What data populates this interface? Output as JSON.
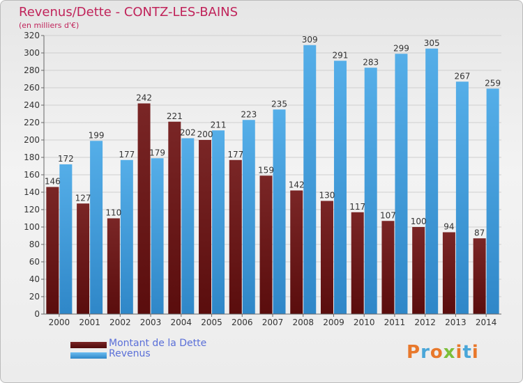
{
  "title": "Revenus/Dette - CONTZ-LES-BAINS",
  "subtitle": "(en milliers d'€)",
  "logo": {
    "text": "Proxiti",
    "colors": [
      "#e8782b",
      "#4aa6d8",
      "#e8782b",
      "#7cbf3a",
      "#e8782b",
      "#4aa6d8",
      "#e8782b"
    ]
  },
  "colors": {
    "dette": "#6e1b1b",
    "revenus": "#4ba3e3",
    "title": "#c0235a",
    "legend_text": "#5a6fd8"
  },
  "chart_data": {
    "type": "bar",
    "title": "Revenus/Dette - CONTZ-LES-BAINS",
    "ylabel": "(en milliers d'€)",
    "ylim": [
      0,
      320
    ],
    "ytick_step": 20,
    "grid": true,
    "legend_position": "bottom-left",
    "categories": [
      "2000",
      "2001",
      "2002",
      "2003",
      "2004",
      "2005",
      "2006",
      "2007",
      "2008",
      "2009",
      "2010",
      "2011",
      "2012",
      "2013",
      "2014"
    ],
    "series": [
      {
        "name": "Montant de la Dette",
        "values": [
          146,
          127,
          110,
          242,
          221,
          200,
          177,
          159,
          142,
          130,
          117,
          107,
          100,
          94,
          87
        ]
      },
      {
        "name": "Revenus",
        "values": [
          172,
          199,
          177,
          179,
          202,
          211,
          223,
          235,
          309,
          291,
          283,
          299,
          305,
          267,
          259
        ]
      }
    ]
  }
}
